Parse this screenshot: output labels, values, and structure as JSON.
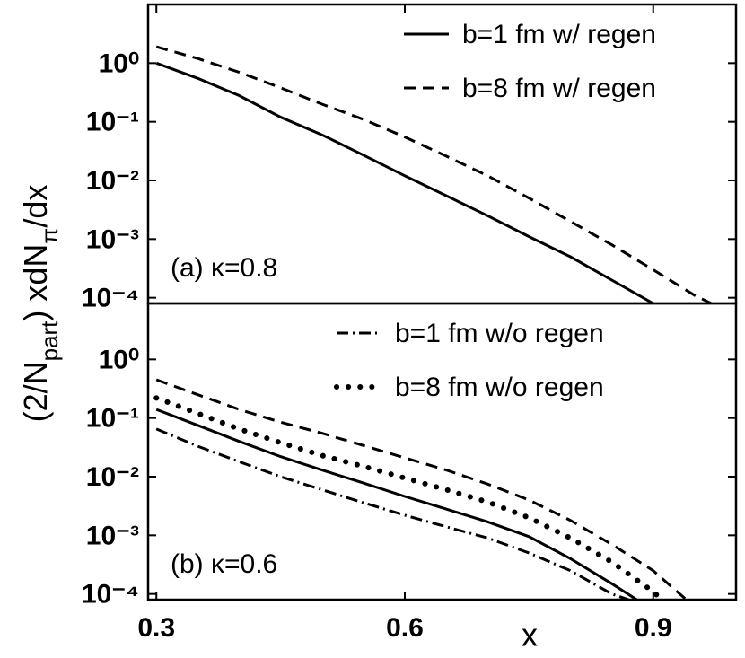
{
  "chart_data": [
    {
      "type": "line",
      "log_y": true,
      "legend": "upper right",
      "ylabel": [
        "(2/N",
        "part",
        ") xdN",
        "π",
        "/dx"
      ],
      "annotation": "(a) κ=0.8",
      "xlim": [
        0.29,
        1.0
      ],
      "ylim": [
        8e-05,
        10
      ],
      "yticks": [
        {
          "value": 1,
          "label": "10⁰"
        },
        {
          "value": 0.1,
          "label": "10⁻¹"
        },
        {
          "value": 0.01,
          "label": "10⁻²"
        },
        {
          "value": 0.001,
          "label": "10⁻³"
        },
        {
          "value": 0.0001,
          "label": "10⁻⁴"
        }
      ],
      "series": [
        {
          "name": "b=1 fm w/ regen",
          "color": "#000000",
          "dash": "solid",
          "x": [
            0.3,
            0.35,
            0.4,
            0.45,
            0.5,
            0.55,
            0.6,
            0.65,
            0.7,
            0.75,
            0.8,
            0.85,
            0.9
          ],
          "values": [
            1.0,
            0.55,
            0.28,
            0.12,
            0.06,
            0.027,
            0.012,
            0.0055,
            0.0025,
            0.0011,
            0.0005,
            0.0002,
            8e-05
          ]
        },
        {
          "name": "b=8 fm w/ regen",
          "color": "#000000",
          "dash": "dashed",
          "x": [
            0.3,
            0.35,
            0.4,
            0.45,
            0.5,
            0.55,
            0.6,
            0.65,
            0.7,
            0.75,
            0.8,
            0.85,
            0.9,
            0.95,
            0.97
          ],
          "values": [
            1.9,
            1.2,
            0.7,
            0.38,
            0.2,
            0.11,
            0.055,
            0.026,
            0.012,
            0.005,
            0.002,
            0.0008,
            0.0003,
            0.00011,
            8e-05
          ]
        }
      ]
    },
    {
      "type": "line",
      "log_y": true,
      "legend": "upper right",
      "xlabel": "x",
      "annotation": "(b) κ=0.6",
      "xlim": [
        0.29,
        1.0
      ],
      "ylim": [
        8e-05,
        9
      ],
      "xticks": [
        0.3,
        0.6,
        0.9
      ],
      "yticks": [
        {
          "value": 1,
          "label": "10⁰"
        },
        {
          "value": 0.1,
          "label": "10⁻¹"
        },
        {
          "value": 0.01,
          "label": "10⁻²"
        },
        {
          "value": 0.001,
          "label": "10⁻³"
        },
        {
          "value": 0.0001,
          "label": "10⁻⁴"
        }
      ],
      "series": [
        {
          "color": "#000000",
          "dash": "solid",
          "x": [
            0.3,
            0.35,
            0.4,
            0.45,
            0.5,
            0.55,
            0.6,
            0.65,
            0.7,
            0.75,
            0.8,
            0.85,
            0.88
          ],
          "values": [
            0.14,
            0.075,
            0.04,
            0.022,
            0.013,
            0.0078,
            0.0046,
            0.0028,
            0.0017,
            0.00095,
            0.0004,
            0.00015,
            8e-05
          ]
        },
        {
          "color": "#000000",
          "dash": "dashed",
          "x": [
            0.3,
            0.35,
            0.4,
            0.45,
            0.5,
            0.55,
            0.6,
            0.65,
            0.7,
            0.75,
            0.8,
            0.85,
            0.9,
            0.94
          ],
          "values": [
            0.45,
            0.25,
            0.14,
            0.085,
            0.055,
            0.034,
            0.021,
            0.013,
            0.0075,
            0.004,
            0.0018,
            0.0007,
            0.00025,
            8e-05
          ]
        },
        {
          "name": "b=1 fm w/o regen",
          "color": "#000000",
          "dash": "dashdot",
          "x": [
            0.3,
            0.35,
            0.4,
            0.45,
            0.5,
            0.55,
            0.6,
            0.65,
            0.7,
            0.75,
            0.8,
            0.85,
            0.87
          ],
          "values": [
            0.065,
            0.033,
            0.018,
            0.01,
            0.006,
            0.0036,
            0.0022,
            0.0014,
            0.0009,
            0.0005,
            0.00025,
            0.0001,
            8e-05
          ]
        },
        {
          "name": "b=8 fm w/o regen",
          "color": "#000000",
          "dash": "dotted",
          "x": [
            0.3,
            0.35,
            0.4,
            0.45,
            0.5,
            0.55,
            0.6,
            0.65,
            0.7,
            0.75,
            0.8,
            0.85,
            0.9,
            0.91
          ],
          "values": [
            0.22,
            0.12,
            0.065,
            0.038,
            0.023,
            0.015,
            0.0095,
            0.006,
            0.0037,
            0.002,
            0.0009,
            0.00035,
            0.00011,
            8e-05
          ]
        }
      ]
    }
  ]
}
